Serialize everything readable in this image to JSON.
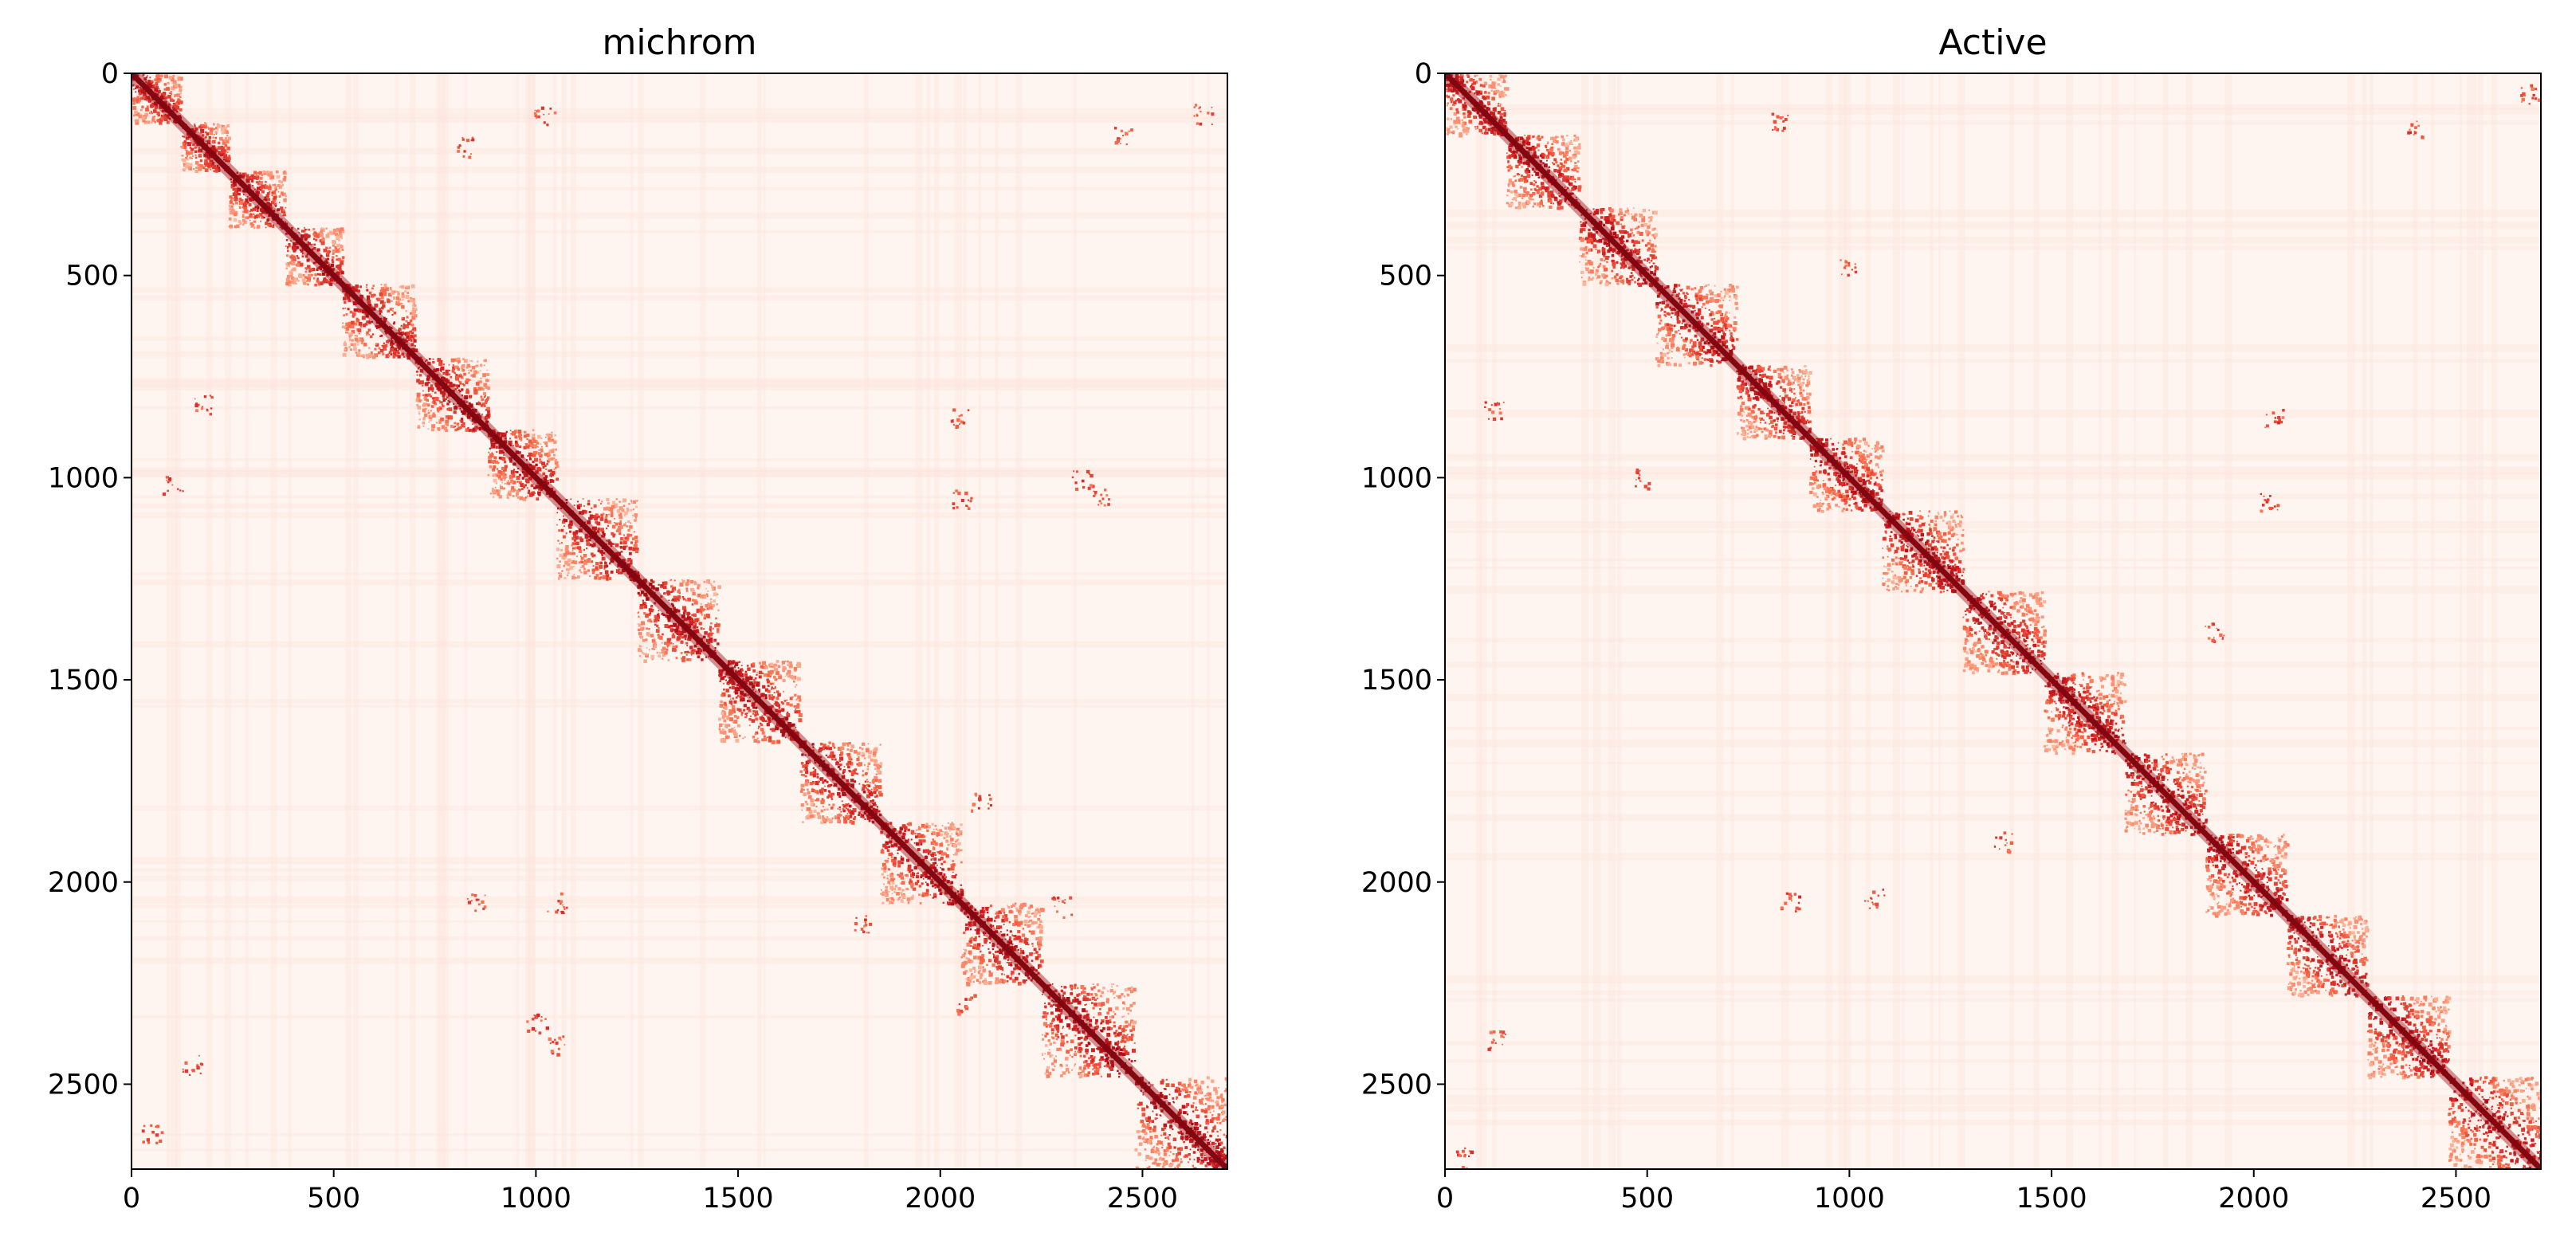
{
  "chart_data": [
    {
      "type": "heatmap",
      "title": "michrom",
      "colormap": "Reds",
      "xlim": [
        0,
        2710
      ],
      "ylim": [
        2710,
        0
      ],
      "x_ticks": [
        "0",
        "500",
        "1000",
        "1500",
        "2000",
        "2500"
      ],
      "y_ticks": [
        "0",
        "500",
        "1000",
        "1500",
        "2000",
        "2500"
      ],
      "tad_blocks": [
        [
          0,
          120
        ],
        [
          120,
          240
        ],
        [
          240,
          380
        ],
        [
          380,
          520
        ],
        [
          520,
          700
        ],
        [
          700,
          880
        ],
        [
          880,
          1050
        ],
        [
          1050,
          1250
        ],
        [
          1250,
          1450
        ],
        [
          1450,
          1650
        ],
        [
          1650,
          1850
        ],
        [
          1850,
          2050
        ],
        [
          2050,
          2250
        ],
        [
          2250,
          2480
        ],
        [
          2480,
          2710
        ]
      ],
      "off_diagonal_hotspots": [
        [
          50,
          2620
        ],
        [
          2650,
          100
        ],
        [
          820,
          180
        ],
        [
          180,
          820
        ],
        [
          1020,
          100
        ],
        [
          100,
          1020
        ],
        [
          2450,
          150
        ],
        [
          150,
          2450
        ],
        [
          2050,
          1050
        ],
        [
          1050,
          2050
        ],
        [
          2300,
          2060
        ],
        [
          2060,
          2300
        ],
        [
          1800,
          2100
        ],
        [
          2100,
          1800
        ],
        [
          2350,
          1000
        ],
        [
          1000,
          2350
        ],
        [
          2400,
          1050
        ],
        [
          1050,
          2400
        ],
        [
          2050,
          850
        ],
        [
          850,
          2050
        ]
      ],
      "grid": false
    },
    {
      "type": "heatmap",
      "title": "Active",
      "colormap": "Reds",
      "xlim": [
        0,
        2710
      ],
      "ylim": [
        2710,
        0
      ],
      "x_ticks": [
        "0",
        "500",
        "1000",
        "1500",
        "2000",
        "2500"
      ],
      "y_ticks": [
        "0",
        "500",
        "1000",
        "1500",
        "2000",
        "2500"
      ],
      "tad_blocks": [
        [
          0,
          150
        ],
        [
          150,
          330
        ],
        [
          330,
          520
        ],
        [
          520,
          720
        ],
        [
          720,
          900
        ],
        [
          900,
          1080
        ],
        [
          1080,
          1280
        ],
        [
          1280,
          1480
        ],
        [
          1480,
          1680
        ],
        [
          1680,
          1880
        ],
        [
          1880,
          2080
        ],
        [
          2080,
          2280
        ],
        [
          2280,
          2480
        ],
        [
          2480,
          2710
        ]
      ],
      "off_diagonal_hotspots": [
        [
          50,
          2680
        ],
        [
          2680,
          50
        ],
        [
          830,
          120
        ],
        [
          120,
          830
        ],
        [
          1000,
          480
        ],
        [
          480,
          1000
        ],
        [
          2040,
          1060
        ],
        [
          1060,
          2040
        ],
        [
          2390,
          130
        ],
        [
          130,
          2390
        ],
        [
          2360,
          2400
        ],
        [
          1380,
          1900
        ],
        [
          1900,
          1380
        ],
        [
          2050,
          850
        ],
        [
          850,
          2050
        ]
      ],
      "grid": false
    }
  ]
}
